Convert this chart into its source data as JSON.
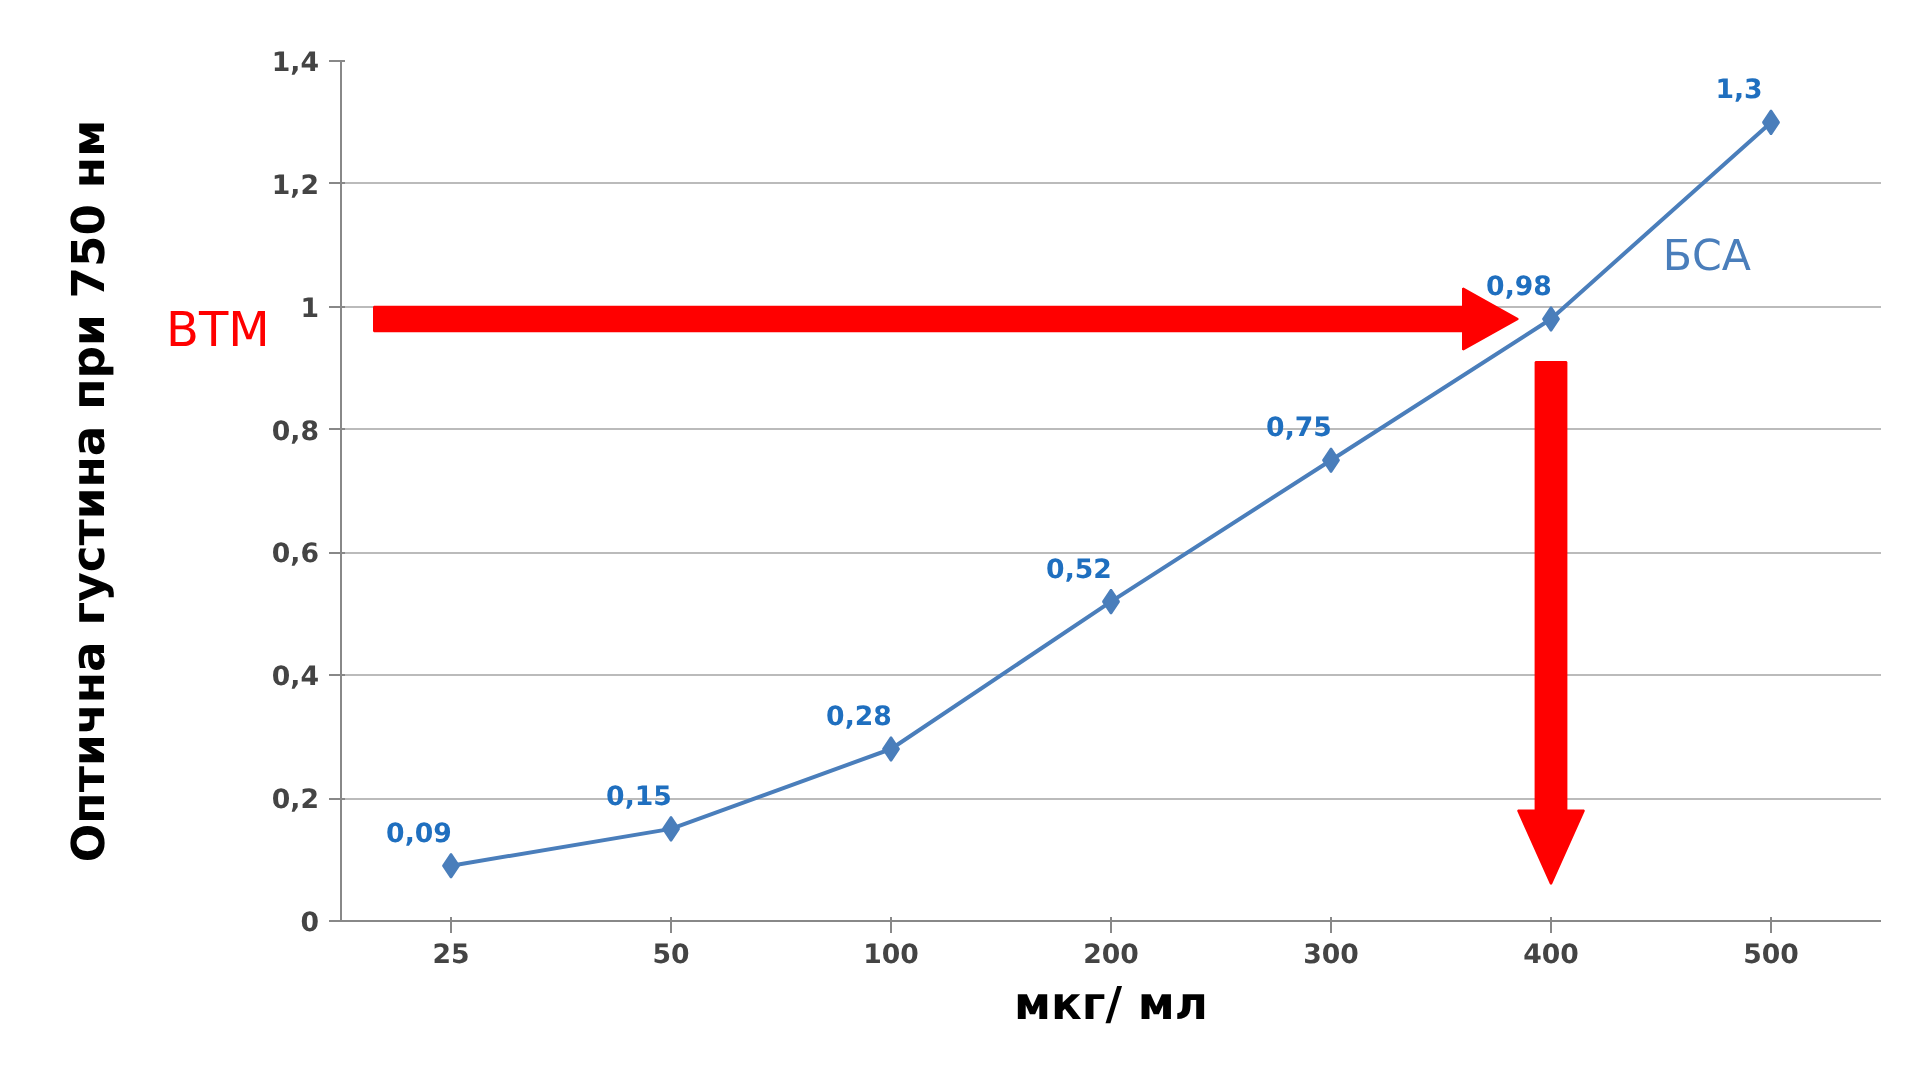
{
  "chart_data": {
    "type": "line",
    "xlabel": "мкг/ мл",
    "ylabel": "Оптична густина при 750 нм",
    "categories": [
      "25",
      "50",
      "100",
      "200",
      "300",
      "400",
      "500"
    ],
    "series": [
      {
        "name": "БСА",
        "color": "#4a7ebb",
        "values": [
          0.09,
          0.15,
          0.28,
          0.52,
          0.75,
          0.98,
          1.3
        ]
      }
    ],
    "value_labels": [
      "0,09",
      "0,15",
      "0,28",
      "0,52",
      "0,75",
      "0,98",
      "1,3"
    ],
    "marker": "diamond",
    "line_style": "solid",
    "grid": "y",
    "legend": false,
    "ylim": [
      0,
      1.4
    ],
    "yticks": [
      0,
      {
        "value": 0.2,
        "label": "0,2"
      },
      {
        "value": 0.4,
        "label": "0,4"
      },
      {
        "value": 0.6,
        "label": "0,6"
      },
      {
        "value": 0.8,
        "label": "0,8"
      },
      1,
      {
        "value": 1.2,
        "label": "1,2"
      },
      {
        "value": 1.4,
        "label": "1,4"
      }
    ],
    "annotations": [
      "ВТМ"
    ]
  }
}
